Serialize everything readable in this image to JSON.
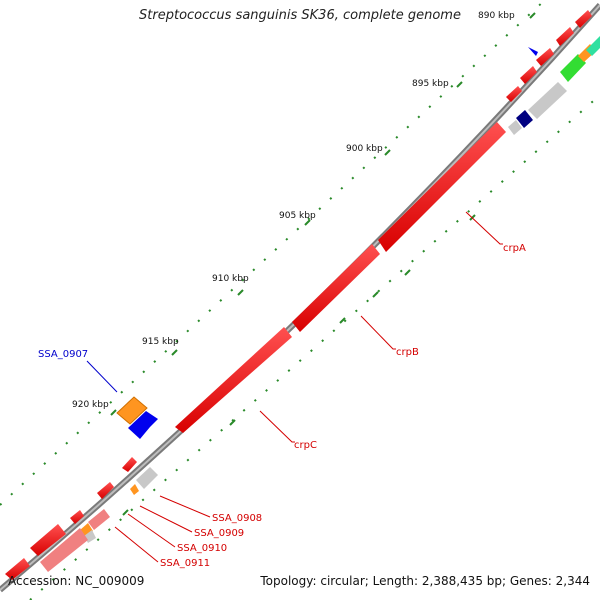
{
  "title": "Streptococcus sanguinis SK36, complete genome",
  "footer": {
    "accession": "Accession: NC_009009",
    "summary": "Topology: circular; Length: 2,388,435 bp; Genes: 2,344"
  },
  "ticks": [
    "890 kbp",
    "895 kbp",
    "900 kbp",
    "905 kbp",
    "910 kbp",
    "915 kbp",
    "920 kbp"
  ],
  "gene_labels": [
    {
      "text": "crpA",
      "color": "#d40000"
    },
    {
      "text": "crpB",
      "color": "#d40000"
    },
    {
      "text": "crpC",
      "color": "#d40000"
    },
    {
      "text": "SSA_0907",
      "color": "#0000cc"
    },
    {
      "text": "SSA_0908",
      "color": "#d40000"
    },
    {
      "text": "SSA_0909",
      "color": "#d40000"
    },
    {
      "text": "SSA_0910",
      "color": "#d40000"
    },
    {
      "text": "SSA_0911",
      "color": "#d40000"
    }
  ],
  "colors": {
    "backbone": "#888888",
    "cds": "#ee1111",
    "tick": "#2a8a2a",
    "orange": "#ff8c00",
    "blue": "#0000ff",
    "navy": "#000080",
    "gray": "#c8c8c8",
    "green": "#33dd33",
    "pink": "#f08080"
  }
}
